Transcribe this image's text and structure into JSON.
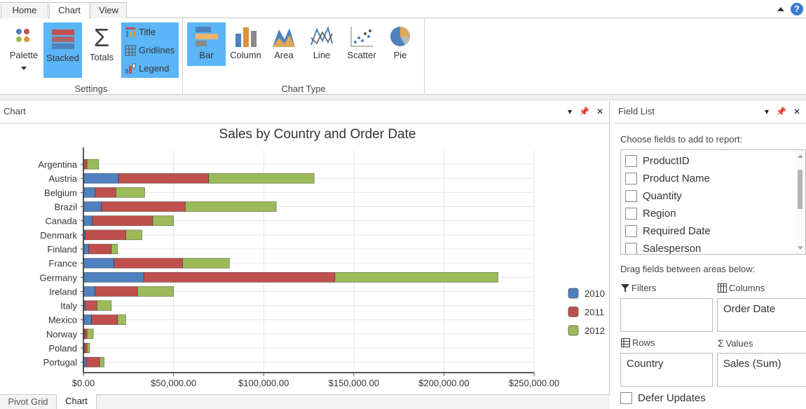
{
  "tabs": [
    {
      "label": "Home",
      "active": false
    },
    {
      "label": "Chart",
      "active": true
    },
    {
      "label": "View",
      "active": false
    }
  ],
  "ribbon": {
    "settings": {
      "label": "Settings",
      "palette": "Palette",
      "stacked": "Stacked",
      "totals": "Totals",
      "title": "Title",
      "gridlines": "Gridlines",
      "legend": "Legend"
    },
    "chart_type": {
      "label": "Chart Type",
      "bar": "Bar",
      "column": "Column",
      "area": "Area",
      "line": "Line",
      "scatter": "Scatter",
      "pie": "Pie"
    }
  },
  "chart_pane": {
    "title": "Chart"
  },
  "field_list": {
    "title": "Field List",
    "choose_label": "Choose fields to add to report:",
    "fields": [
      "ProductID",
      "Product Name",
      "Quantity",
      "Region",
      "Required Date",
      "Salesperson"
    ],
    "drag_label": "Drag fields between areas below:",
    "filters_label": "Filters",
    "columns_label": "Columns",
    "columns_value": "Order Date",
    "rows_label": "Rows",
    "rows_value": "Country",
    "values_label": "Values",
    "values_value": "Sales (Sum)",
    "defer_label": "Defer Updates"
  },
  "bottom_tabs": [
    {
      "label": "Pivot Grid",
      "active": false
    },
    {
      "label": "Chart",
      "active": true
    }
  ],
  "colors": {
    "s2010": "#4e81bd",
    "s2011": "#c0504d",
    "s2012": "#9bbb59",
    "accent": "#5bb5f7"
  },
  "chart_data": {
    "type": "bar",
    "stacked": true,
    "title": "Sales by Country and Order Date",
    "categories": [
      "Argentina",
      "Austria",
      "Belgium",
      "Brazil",
      "Canada",
      "Denmark",
      "Finland",
      "France",
      "Germany",
      "Ireland",
      "Italy",
      "Mexico",
      "Norway",
      "Poland",
      "Portugal"
    ],
    "series": [
      {
        "name": "2010",
        "values": [
          0,
          19500,
          6500,
          10000,
          5000,
          1000,
          3000,
          17000,
          33500,
          6500,
          1000,
          4500,
          500,
          500,
          1500
        ]
      },
      {
        "name": "2011",
        "values": [
          2000,
          50000,
          11500,
          46500,
          33500,
          22500,
          12500,
          38000,
          106000,
          23500,
          6500,
          14500,
          1500,
          1500,
          7500
        ]
      },
      {
        "name": "2012",
        "values": [
          6500,
          58500,
          16000,
          50500,
          11500,
          9000,
          3500,
          26000,
          90500,
          20000,
          8000,
          4500,
          3500,
          1500,
          2500
        ]
      }
    ],
    "xlim": [
      0,
      250000
    ],
    "x_ticks": [
      "$0.00",
      "$50,000.00",
      "$100,000.00",
      "$150,000.00",
      "$200,000.00",
      "$250,000.00"
    ],
    "legend": "right",
    "grid": true
  }
}
